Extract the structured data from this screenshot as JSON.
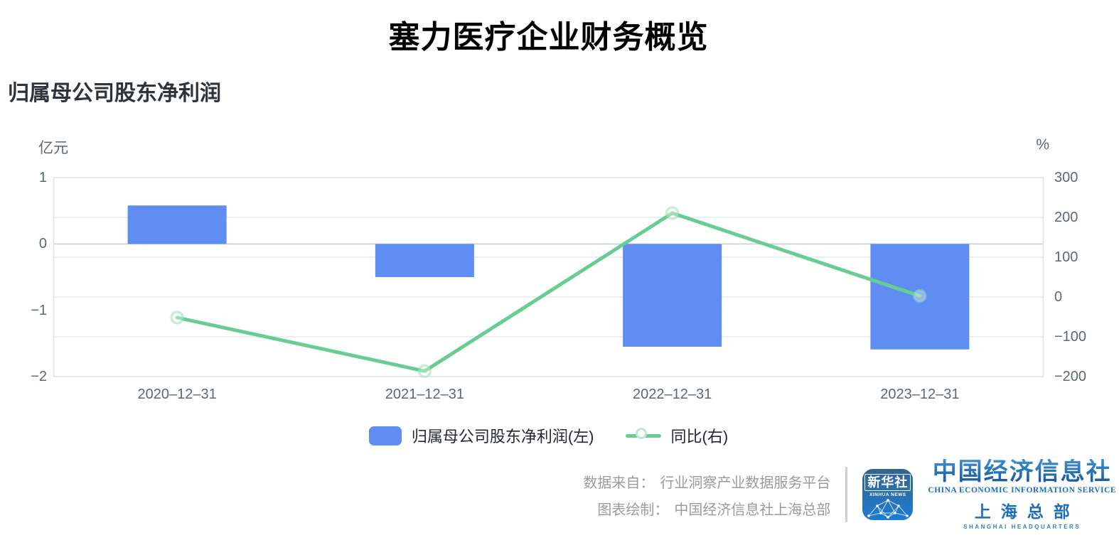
{
  "page": {
    "title": "塞力医疗企业财务概览",
    "subtitle": "归属母公司股东净利润"
  },
  "chart_data": {
    "type": "bar",
    "subtype": "bar-line-combo",
    "categories": [
      "2020–12–31",
      "2021–12–31",
      "2022–12–31",
      "2023–12–31"
    ],
    "series": [
      {
        "name": "归属母公司股东净利润(左)",
        "type": "bar",
        "axis": "left",
        "unit": "亿元",
        "values": [
          0.58,
          -0.5,
          -1.55,
          -1.59
        ]
      },
      {
        "name": "同比(右)",
        "type": "line",
        "axis": "right",
        "unit": "%",
        "values": [
          -51.7,
          -186.2,
          210.9,
          2.6
        ]
      }
    ],
    "left_axis": {
      "unit": "亿元",
      "min": -2,
      "max": 1,
      "tick_values": [
        1,
        0,
        -1,
        -2
      ],
      "tick_labels": [
        "1",
        "0",
        "−1",
        "−2"
      ]
    },
    "right_axis": {
      "unit": "%",
      "min": -200,
      "max": 300,
      "tick_values": [
        300,
        200,
        100,
        0,
        -100,
        -200
      ],
      "tick_labels": [
        "300",
        "200",
        "100",
        "0",
        "−100",
        "−200"
      ]
    },
    "grid": true,
    "legend_position": "bottom"
  },
  "colors": {
    "bar": "#5F8DF2",
    "line": "#68CD90",
    "marker_ring": "#8FDDB4",
    "grid": "#E4E9F2",
    "plot_border": "#DCE1EA",
    "zero_line": "#C5CAD4",
    "axis_text": "#5C6773",
    "legend_text": "#24282E",
    "footer_text": "#9B9B9B",
    "logo_blue": "#1D6DBD"
  },
  "footer": {
    "source_label": "数据来自：",
    "source_value": "行业洞察产业数据服务平台",
    "credit_label": "图表绘制：",
    "credit_value": "中国经济信息社上海总部"
  },
  "logos": {
    "xinhua": {
      "name_cn": "新华社",
      "name_en": "XINHUA NEWS"
    },
    "ceis": {
      "name_cn": "中国经济信息社",
      "name_en": "CHINA ECONOMIC INFORMATION SERVICE",
      "branch_cn": "上海总部",
      "branch_en": "SHANGHAI HEADQUARTERS"
    }
  }
}
